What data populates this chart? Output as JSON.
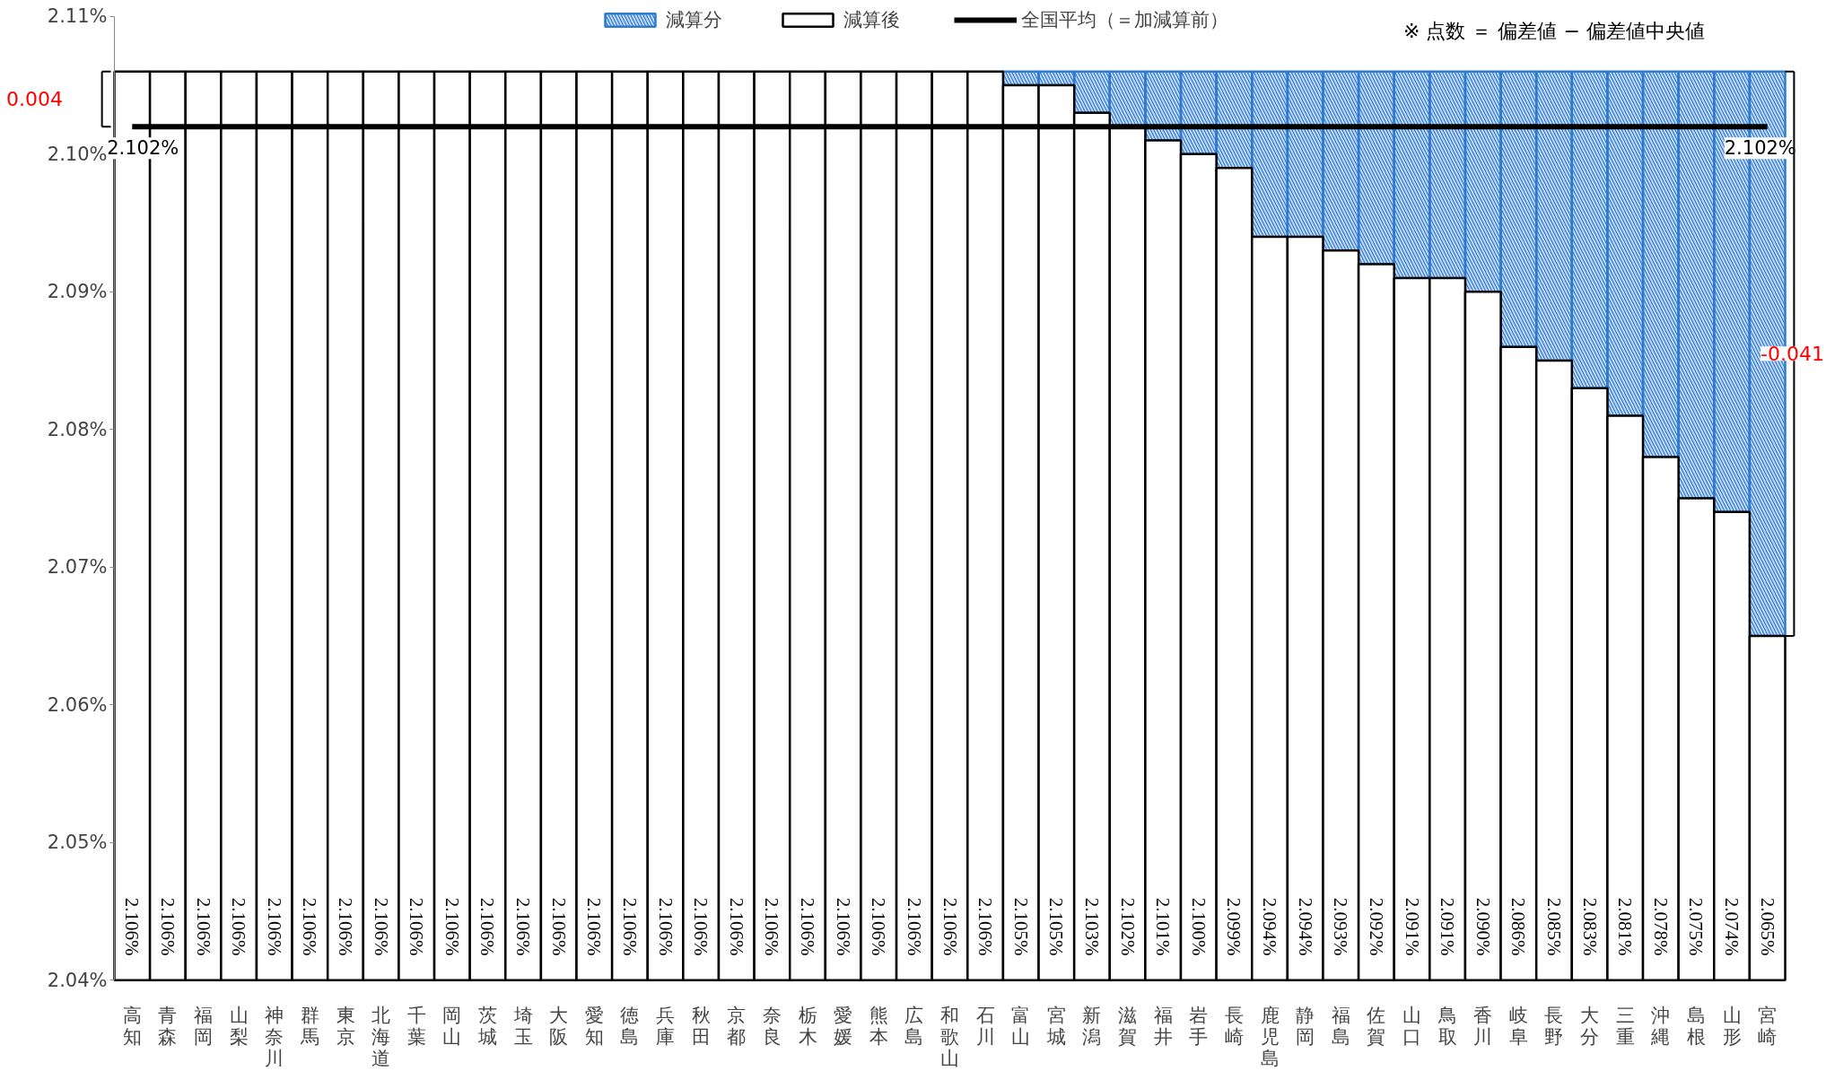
{
  "chart_data": {
    "type": "bar",
    "categories": [
      "高知",
      "青森",
      "福岡",
      "山梨",
      "神奈川",
      "群馬",
      "東京",
      "北海道",
      "千葉",
      "岡山",
      "茨城",
      "埼玉",
      "大阪",
      "愛知",
      "徳島",
      "兵庫",
      "秋田",
      "京都",
      "奈良",
      "栃木",
      "愛媛",
      "熊本",
      "広島",
      "和歌山",
      "石川",
      "富山",
      "宮城",
      "新潟",
      "滋賀",
      "福井",
      "岩手",
      "長崎",
      "鹿児島",
      "静岡",
      "福島",
      "佐賀",
      "山口",
      "鳥取",
      "香川",
      "岐阜",
      "長野",
      "大分",
      "三重",
      "沖縄",
      "島根",
      "山形",
      "宮崎"
    ],
    "series": [
      {
        "name": "減算分",
        "color": "#2e7bd0",
        "base": [
          null,
          null,
          null,
          null,
          null,
          null,
          null,
          null,
          null,
          null,
          null,
          null,
          null,
          null,
          null,
          null,
          null,
          null,
          null,
          null,
          null,
          null,
          null,
          null,
          null,
          2.105,
          2.105,
          2.103,
          2.102,
          2.101,
          2.1,
          2.099,
          2.094,
          2.094,
          2.093,
          2.092,
          2.091,
          2.091,
          2.09,
          2.086,
          2.085,
          2.083,
          2.081,
          2.078,
          2.075,
          2.074,
          2.065
        ],
        "values": [
          null,
          null,
          null,
          null,
          null,
          null,
          null,
          null,
          null,
          null,
          null,
          null,
          null,
          null,
          null,
          null,
          null,
          null,
          null,
          null,
          null,
          null,
          null,
          null,
          null,
          0.001,
          0.001,
          0.003,
          0.004,
          0.005,
          0.006,
          0.007,
          0.012,
          0.012,
          0.013,
          0.014,
          0.015,
          0.015,
          0.016,
          0.02,
          0.021,
          0.023,
          0.025,
          0.028,
          0.031,
          0.032,
          0.041
        ]
      },
      {
        "name": "減算後",
        "color": "#000000",
        "values": [
          2.106,
          2.106,
          2.106,
          2.106,
          2.106,
          2.106,
          2.106,
          2.106,
          2.106,
          2.106,
          2.106,
          2.106,
          2.106,
          2.106,
          2.106,
          2.106,
          2.106,
          2.106,
          2.106,
          2.106,
          2.106,
          2.106,
          2.106,
          2.106,
          2.106,
          2.105,
          2.105,
          2.103,
          2.102,
          2.101,
          2.1,
          2.099,
          2.094,
          2.094,
          2.093,
          2.092,
          2.091,
          2.091,
          2.09,
          2.086,
          2.085,
          2.083,
          2.081,
          2.078,
          2.075,
          2.074,
          2.065
        ],
        "value_labels": [
          "2.106%",
          "2.106%",
          "2.106%",
          "2.106%",
          "2.106%",
          "2.106%",
          "2.106%",
          "2.106%",
          "2.106%",
          "2.106%",
          "2.106%",
          "2.106%",
          "2.106%",
          "2.106%",
          "2.106%",
          "2.106%",
          "2.106%",
          "2.106%",
          "2.106%",
          "2.106%",
          "2.106%",
          "2.106%",
          "2.106%",
          "2.106%",
          "2.106%",
          "2.105%",
          "2.105%",
          "2.103%",
          "2.102%",
          "2.101%",
          "2.100%",
          "2.099%",
          "2.094%",
          "2.094%",
          "2.093%",
          "2.092%",
          "2.091%",
          "2.091%",
          "2.090%",
          "2.086%",
          "2.085%",
          "2.083%",
          "2.081%",
          "2.078%",
          "2.075%",
          "2.074%",
          "2.065%"
        ]
      },
      {
        "name": "全国平均（＝加減算前）",
        "type": "line",
        "color": "#000000",
        "values": [
          2.102,
          2.102,
          2.102,
          2.102,
          2.102,
          2.102,
          2.102,
          2.102,
          2.102,
          2.102,
          2.102,
          2.102,
          2.102,
          2.102,
          2.102,
          2.102,
          2.102,
          2.102,
          2.102,
          2.102,
          2.102,
          2.102,
          2.102,
          2.102,
          2.102,
          2.102,
          2.102,
          2.102,
          2.102,
          2.102,
          2.102,
          2.102,
          2.102,
          2.102,
          2.102,
          2.102,
          2.102,
          2.102,
          2.102,
          2.102,
          2.102,
          2.102,
          2.102,
          2.102,
          2.102,
          2.102,
          2.102
        ]
      }
    ],
    "ylim": [
      2.04,
      2.11
    ],
    "yticks": [
      {
        "value": 2.04,
        "label": "2.04%"
      },
      {
        "value": 2.05,
        "label": "2.05%"
      },
      {
        "value": 2.06,
        "label": "2.06%"
      },
      {
        "value": 2.07,
        "label": "2.07%"
      },
      {
        "value": 2.08,
        "label": "2.08%"
      },
      {
        "value": 2.09,
        "label": "2.09%"
      },
      {
        "value": 2.1,
        "label": "2.10%"
      },
      {
        "value": 2.11,
        "label": "2.11%"
      }
    ],
    "annotations": [
      "※ 点数 ＝ 偏差値 − 偏差値中央値",
      {
        "text": "2.102%",
        "x": "高知",
        "y": 2.102
      },
      {
        "text": "2.102%",
        "x": "宮崎",
        "y": 2.102
      },
      "0.004",
      "-0.041"
    ],
    "grid": false,
    "legend": "top"
  }
}
